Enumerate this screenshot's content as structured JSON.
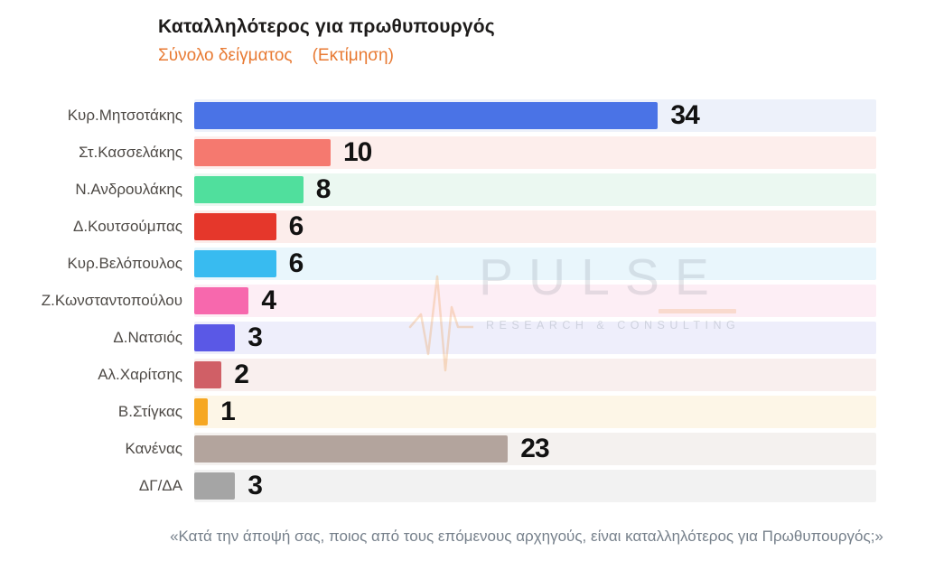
{
  "header": {
    "title": "Καταλληλότερος για πρωθυπουργός",
    "subtitle_left": "Σύνολο δείγματος",
    "subtitle_right": "(Εκτίμηση)",
    "subtitle_color": "#e87a33"
  },
  "watermark": {
    "name": "PULSE",
    "tagline": "RESEARCH & CONSULTING",
    "icon": "heartbeat-pulse-line",
    "accent_color": "#ee9646"
  },
  "footer": {
    "question": "«Κατά την άποψή σας, ποιος από τους επόμενους αρχηγούς, είναι καταλληλότερος για Πρωθυπουργός;»"
  },
  "chart_data": {
    "type": "bar",
    "orientation": "horizontal",
    "title": "Καταλληλότερος για πρωθυπουργός",
    "subtitle": "Σύνολο δείγματος (Εκτίμηση)",
    "categories": [
      "Κυρ.Μητσοτάκης",
      "Στ.Κασσελάκης",
      "Ν.Ανδρουλάκης",
      "Δ.Κουτσούμπας",
      "Κυρ.Βελόπουλος",
      "Ζ.Κωνσταντοπούλου",
      "Δ.Νατσιός",
      "Αλ.Χαρίτσης",
      "Β.Στίγκας",
      "Κανένας",
      "ΔΓ/ΔΑ"
    ],
    "values": [
      34,
      10,
      8,
      6,
      6,
      4,
      3,
      2,
      1,
      23,
      3
    ],
    "bar_colors": [
      "#4a73e6",
      "#f5796f",
      "#50df9d",
      "#e5372b",
      "#38bbf0",
      "#f768ad",
      "#5a58e6",
      "#d05f66",
      "#f6a722",
      "#b3a49d",
      "#a5a5a5"
    ],
    "track_colors": [
      "#edf1fa",
      "#fdeeec",
      "#ebf8f1",
      "#fcedeb",
      "#e9f6fc",
      "#fdeef5",
      "#eeeefb",
      "#f9efee",
      "#fdf6e7",
      "#f4f1ef",
      "#f2f2f2"
    ],
    "xlim": [
      0,
      50
    ],
    "grid": false,
    "legend": false,
    "value_labels_shown": true
  }
}
